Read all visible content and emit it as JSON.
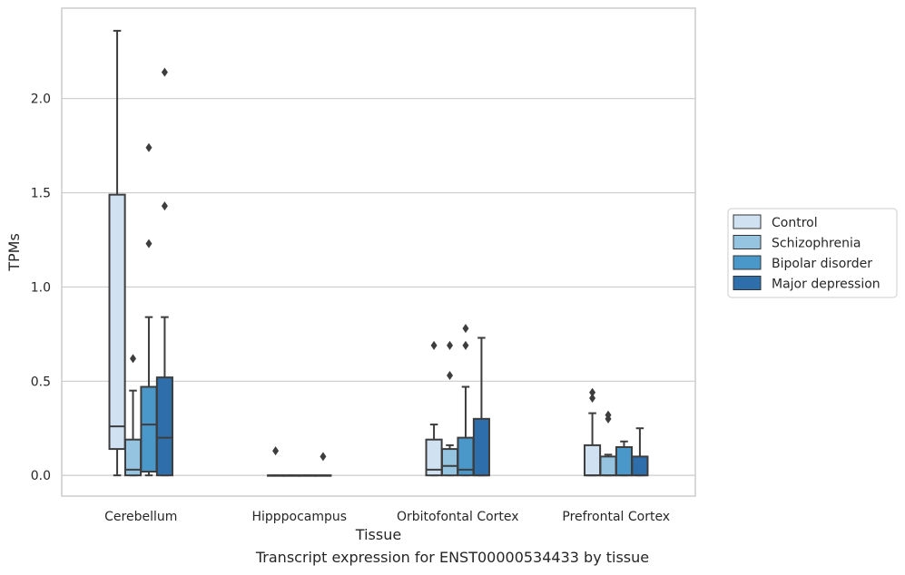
{
  "chart_data": {
    "type": "box",
    "xlabel": "Tissue",
    "ylabel": "TPMs",
    "categories": [
      "Cerebellum",
      "Hipppocampus",
      "Orbitofontal Cortex",
      "Prefrontal Cortex"
    ],
    "ylim": [
      -0.11,
      2.48
    ],
    "yticks": [
      0.0,
      0.5,
      1.0,
      1.5,
      2.0
    ],
    "grid": "horizontal",
    "legend_position": "right",
    "series": [
      {
        "name": "Control",
        "color": "#d0e1f2",
        "boxes": [
          {
            "whisker_low": 0.0,
            "q1": 0.14,
            "median": 0.26,
            "q3": 1.49,
            "whisker_high": 2.36,
            "outliers": []
          },
          {
            "whisker_low": 0.0,
            "q1": 0.0,
            "median": 0.0,
            "q3": 0.0,
            "whisker_high": 0.0,
            "outliers": [
              0.13
            ]
          },
          {
            "whisker_low": 0.0,
            "q1": 0.0,
            "median": 0.03,
            "q3": 0.19,
            "whisker_high": 0.27,
            "outliers": [
              0.69
            ]
          },
          {
            "whisker_low": 0.0,
            "q1": 0.0,
            "median": 0.0,
            "q3": 0.16,
            "whisker_high": 0.33,
            "outliers": [
              0.41,
              0.44
            ]
          }
        ]
      },
      {
        "name": "Schizophrenia",
        "color": "#94c4df",
        "boxes": [
          {
            "whisker_low": 0.0,
            "q1": 0.0,
            "median": 0.03,
            "q3": 0.19,
            "whisker_high": 0.45,
            "outliers": [
              0.62
            ]
          },
          {
            "whisker_low": 0.0,
            "q1": 0.0,
            "median": 0.0,
            "q3": 0.0,
            "whisker_high": 0.0,
            "outliers": []
          },
          {
            "whisker_low": 0.0,
            "q1": 0.0,
            "median": 0.05,
            "q3": 0.14,
            "whisker_high": 0.16,
            "outliers": [
              0.53,
              0.69
            ]
          },
          {
            "whisker_low": 0.0,
            "q1": 0.0,
            "median": 0.0,
            "q3": 0.1,
            "whisker_high": 0.11,
            "outliers": [
              0.3,
              0.32
            ]
          }
        ]
      },
      {
        "name": "Bipolar disorder",
        "color": "#4a98c9",
        "boxes": [
          {
            "whisker_low": 0.0,
            "q1": 0.02,
            "median": 0.27,
            "q3": 0.47,
            "whisker_high": 0.84,
            "outliers": [
              1.23,
              1.74
            ]
          },
          {
            "whisker_low": 0.0,
            "q1": 0.0,
            "median": 0.0,
            "q3": 0.0,
            "whisker_high": 0.0,
            "outliers": []
          },
          {
            "whisker_low": 0.0,
            "q1": 0.0,
            "median": 0.03,
            "q3": 0.2,
            "whisker_high": 0.47,
            "outliers": [
              0.69,
              0.78
            ]
          },
          {
            "whisker_low": 0.0,
            "q1": 0.0,
            "median": 0.0,
            "q3": 0.15,
            "whisker_high": 0.18,
            "outliers": []
          }
        ]
      },
      {
        "name": "Major depression",
        "color": "#2e6fab",
        "boxes": [
          {
            "whisker_low": 0.0,
            "q1": 0.0,
            "median": 0.2,
            "q3": 0.52,
            "whisker_high": 0.84,
            "outliers": [
              1.43,
              2.14
            ]
          },
          {
            "whisker_low": 0.0,
            "q1": 0.0,
            "median": 0.0,
            "q3": 0.0,
            "whisker_high": 0.0,
            "outliers": [
              0.1
            ]
          },
          {
            "whisker_low": 0.0,
            "q1": 0.0,
            "median": 0.0,
            "q3": 0.3,
            "whisker_high": 0.73,
            "outliers": []
          },
          {
            "whisker_low": 0.0,
            "q1": 0.0,
            "median": 0.0,
            "q3": 0.1,
            "whisker_high": 0.25,
            "outliers": []
          }
        ]
      }
    ]
  },
  "caption": "Transcript expression for ENST00000534433 by tissue"
}
